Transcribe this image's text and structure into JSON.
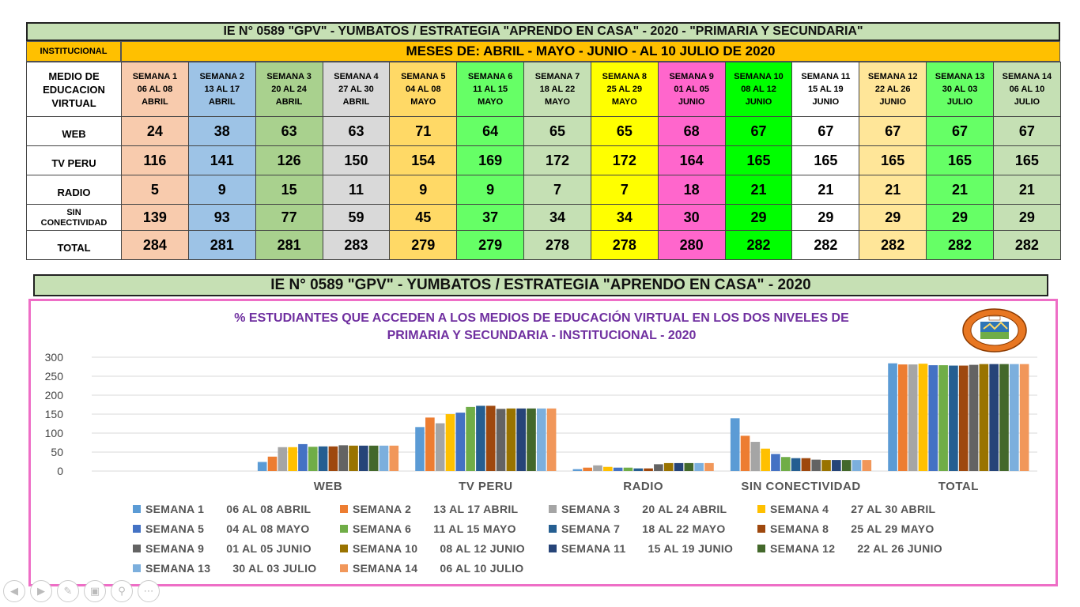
{
  "table": {
    "title": "IE N° 0589 \"GPV\" - YUMBATOS / ESTRATEGIA \"APRENDO EN CASA\" - 2020 - \"PRIMARIA Y SECUNDARIA\"",
    "institucional_label": "INSTITUCIONAL",
    "months_label": "MESES DE: ABRIL -  MAYO - JUNIO - AL 10 JULIO DE 2020",
    "medio_header": [
      "MEDIO DE",
      "EDUCACION",
      "VIRTUAL"
    ],
    "weeks": [
      {
        "name": "SEMANA 1",
        "range": "06 AL 08",
        "month": "ABRIL",
        "color": "#f8cbad"
      },
      {
        "name": "SEMANA 2",
        "range": "13 AL 17",
        "month": "ABRIL",
        "color": "#9dc3e6"
      },
      {
        "name": "SEMANA 3",
        "range": "20 AL 24",
        "month": "ABRIL",
        "color": "#a9d18e"
      },
      {
        "name": "SEMANA 4",
        "range": "27 AL 30",
        "month": "ABRIL",
        "color": "#d9d9d9"
      },
      {
        "name": "SEMANA 5",
        "range": "04 AL 08",
        "month": "MAYO",
        "color": "#ffd966"
      },
      {
        "name": "SEMANA 6",
        "range": "11 AL 15",
        "month": "MAYO",
        "color": "#66ff66"
      },
      {
        "name": "SEMANA 7",
        "range": "18 AL 22",
        "month": "MAYO",
        "color": "#c5e0b4"
      },
      {
        "name": "SEMANA 8",
        "range": "25 AL 29",
        "month": "MAYO",
        "color": "#ffff00"
      },
      {
        "name": "SEMANA 9",
        "range": "01 AL 05",
        "month": "JUNIO",
        "color": "#ff66cc"
      },
      {
        "name": "SEMANA 10",
        "range": "08 AL 12",
        "month": "JUNIO",
        "color": "#00ff00"
      },
      {
        "name": "SEMANA 11",
        "range": "15 AL 19",
        "month": "JUNIO",
        "color": "#ffffff"
      },
      {
        "name": "SEMANA 12",
        "range": "22 AL 26",
        "month": "JUNIO",
        "color": "#ffe699"
      },
      {
        "name": "SEMANA 13",
        "range": "30 AL 03",
        "month": "JULIO",
        "color": "#66ff66"
      },
      {
        "name": "SEMANA 14",
        "range": "06 AL 10",
        "month": "JULIO",
        "color": "#c5e0b4"
      }
    ],
    "rows": [
      {
        "label": "WEB",
        "values": [
          24,
          38,
          63,
          63,
          71,
          64,
          65,
          65,
          68,
          67,
          67,
          67,
          67,
          67
        ]
      },
      {
        "label": "TV PERU",
        "values": [
          116,
          141,
          126,
          150,
          154,
          169,
          172,
          172,
          164,
          165,
          165,
          165,
          165,
          165
        ]
      },
      {
        "label": "RADIO",
        "values": [
          5,
          9,
          15,
          11,
          9,
          9,
          7,
          7,
          18,
          21,
          21,
          21,
          21,
          21
        ]
      },
      {
        "label": "SIN CONECTIVIDAD",
        "label_lines": [
          "SIN",
          "CONECTIVIDAD"
        ],
        "values": [
          139,
          93,
          77,
          59,
          45,
          37,
          34,
          34,
          30,
          29,
          29,
          29,
          29,
          29
        ]
      },
      {
        "label": "TOTAL",
        "values": [
          284,
          281,
          281,
          283,
          279,
          279,
          278,
          278,
          280,
          282,
          282,
          282,
          282,
          282
        ]
      }
    ]
  },
  "chart_section_title": "IE N° 0589 \"GPV\" - YUMBATOS / ESTRATEGIA \"APRENDO EN CASA\" - 2020",
  "chart_data": {
    "type": "bar",
    "title": "% ESTUDIANTES QUE ACCEDEN A LOS MEDIOS DE EDUCACIÓN VIRTUAL EN LOS DOS NIVELES DE PRIMARIA Y SECUNDARIA - INSTITUCIONAL - 2020",
    "title_lines": [
      "% ESTUDIANTES QUE ACCEDEN A LOS MEDIOS DE EDUCACIÓN VIRTUAL EN LOS DOS NIVELES DE",
      "PRIMARIA Y SECUNDARIA - INSTITUCIONAL - 2020"
    ],
    "categories": [
      "",
      "WEB",
      "TV PERU",
      "RADIO",
      "SIN CONECTIVIDAD",
      "TOTAL"
    ],
    "ylim": [
      0,
      300
    ],
    "yticks": [
      0,
      50,
      100,
      150,
      200,
      250,
      300
    ],
    "grid": true,
    "legend_position": "bottom",
    "series": [
      {
        "name": "SEMANA 1",
        "range": "06 AL 08 ABRIL",
        "color": "#5b9bd5",
        "values": [
          null,
          24,
          116,
          5,
          139,
          284
        ]
      },
      {
        "name": "SEMANA 2",
        "range": "13 AL 17 ABRIL",
        "color": "#ed7d31",
        "values": [
          null,
          38,
          141,
          9,
          93,
          281
        ]
      },
      {
        "name": "SEMANA 3",
        "range": "20 AL 24 ABRIL",
        "color": "#a5a5a5",
        "values": [
          null,
          63,
          126,
          15,
          77,
          281
        ]
      },
      {
        "name": "SEMANA 4",
        "range": "27 AL 30 ABRIL",
        "color": "#ffc000",
        "values": [
          null,
          63,
          150,
          11,
          59,
          283
        ]
      },
      {
        "name": "SEMANA 5",
        "range": "04 AL 08 MAYO",
        "color": "#4472c4",
        "values": [
          null,
          71,
          154,
          9,
          45,
          279
        ]
      },
      {
        "name": "SEMANA 6",
        "range": "11 AL 15 MAYO",
        "color": "#70ad47",
        "values": [
          null,
          64,
          169,
          9,
          37,
          279
        ]
      },
      {
        "name": "SEMANA 7",
        "range": "18 AL 22 MAYO",
        "color": "#255e91",
        "values": [
          null,
          65,
          172,
          7,
          34,
          278
        ]
      },
      {
        "name": "SEMANA 8",
        "range": "25 AL 29 MAYO",
        "color": "#9e480e",
        "values": [
          null,
          65,
          172,
          7,
          34,
          278
        ]
      },
      {
        "name": "SEMANA 9",
        "range": "01 AL 05 JUNIO",
        "color": "#636363",
        "values": [
          null,
          68,
          164,
          18,
          30,
          280
        ]
      },
      {
        "name": "SEMANA 10",
        "range": "08 AL 12 JUNIO",
        "color": "#997300",
        "values": [
          null,
          67,
          165,
          21,
          29,
          282
        ]
      },
      {
        "name": "SEMANA 11",
        "range": "15 AL 19 JUNIO",
        "color": "#264478",
        "values": [
          null,
          67,
          165,
          21,
          29,
          282
        ]
      },
      {
        "name": "SEMANA 12",
        "range": "22 AL 26 JUNIO",
        "color": "#43682b",
        "values": [
          null,
          67,
          165,
          21,
          29,
          282
        ]
      },
      {
        "name": "SEMANA 13",
        "range": "30 AL 03 JULIO",
        "color": "#7cafdd",
        "values": [
          null,
          67,
          165,
          21,
          29,
          282
        ]
      },
      {
        "name": "SEMANA 14",
        "range": "06 AL 10 JULIO",
        "color": "#f1975a",
        "values": [
          null,
          67,
          165,
          21,
          29,
          282
        ]
      }
    ]
  },
  "nav": {
    "icons": [
      "prev-icon",
      "next-icon",
      "pen-icon",
      "slides-icon",
      "zoom-icon",
      "more-icon"
    ]
  }
}
